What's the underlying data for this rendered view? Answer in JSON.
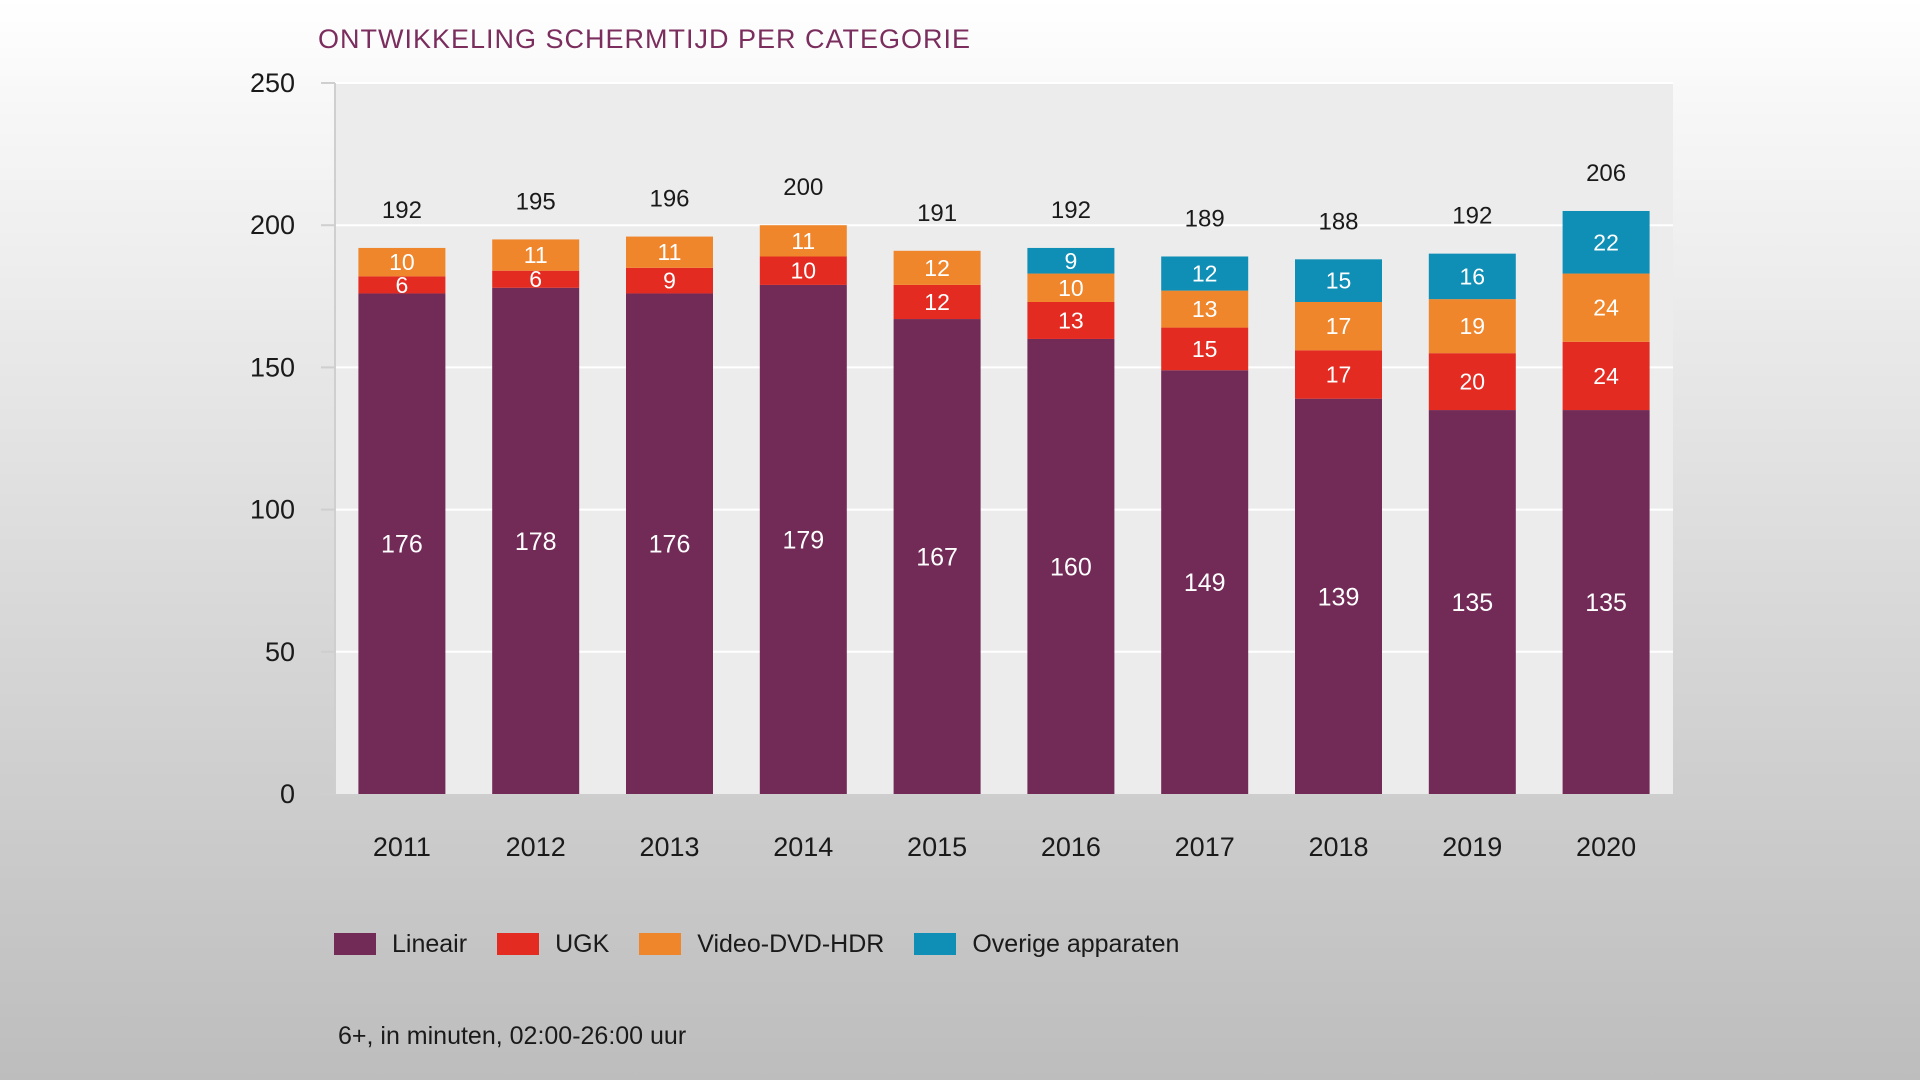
{
  "chart_data": {
    "type": "bar",
    "stacked": true,
    "title": "ONTWIKKELING SCHERMTIJD PER CATEGORIE",
    "categories": [
      "2011",
      "2012",
      "2013",
      "2014",
      "2015",
      "2016",
      "2017",
      "2018",
      "2019",
      "2020"
    ],
    "series": [
      {
        "name": "Lineair",
        "color": "#722a57",
        "values": [
          176,
          178,
          176,
          179,
          167,
          160,
          149,
          139,
          135,
          135
        ]
      },
      {
        "name": "UGK",
        "color": "#e32b22",
        "values": [
          6,
          6,
          9,
          10,
          12,
          13,
          15,
          17,
          20,
          24
        ]
      },
      {
        "name": "Video-DVD-HDR",
        "color": "#f0862b",
        "values": [
          10,
          11,
          11,
          11,
          12,
          10,
          13,
          17,
          19,
          24
        ]
      },
      {
        "name": "Overige apparaten",
        "color": "#0f8fb5",
        "values": [
          null,
          null,
          null,
          null,
          null,
          9,
          12,
          15,
          16,
          22
        ]
      }
    ],
    "totals": [
      192,
      195,
      196,
      200,
      191,
      192,
      189,
      188,
      192,
      206
    ],
    "ylim": [
      0,
      250
    ],
    "yticks": [
      0,
      50,
      100,
      150,
      200,
      250
    ],
    "grid": true,
    "legend_position": "bottom-left",
    "footnote": "6+, in minuten, 02:00-26:00 uur"
  }
}
